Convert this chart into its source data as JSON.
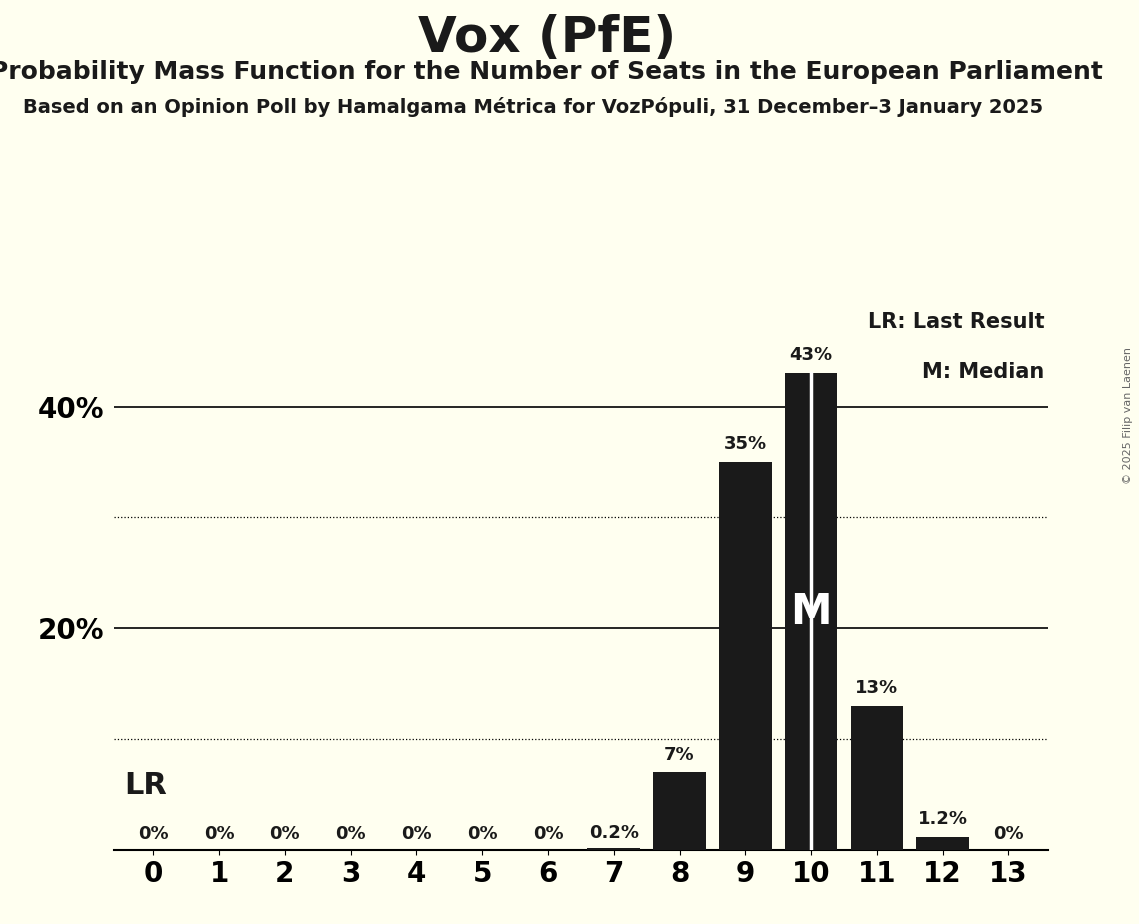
{
  "title": "Vox (PfE)",
  "subtitle": "Probability Mass Function for the Number of Seats in the European Parliament",
  "source_line": "Based on an Opinion Poll by Hamalgama Métrica for VozPópuli, 31 December–3 January 2025",
  "copyright": "© 2025 Filip van Laenen",
  "categories": [
    0,
    1,
    2,
    3,
    4,
    5,
    6,
    7,
    8,
    9,
    10,
    11,
    12,
    13
  ],
  "values": [
    0.0,
    0.0,
    0.0,
    0.0,
    0.0,
    0.0,
    0.0,
    0.2,
    7.0,
    35.0,
    43.0,
    13.0,
    1.2,
    0.0
  ],
  "bar_color": "#1a1a1a",
  "background_color": "#fffff0",
  "label_color": "#1a1a1a",
  "bar_labels": [
    "0%",
    "0%",
    "0%",
    "0%",
    "0%",
    "0%",
    "0%",
    "0.2%",
    "7%",
    "35%",
    "43%",
    "13%",
    "1.2%",
    "0%"
  ],
  "median_seat": 10,
  "lr_label": "LR",
  "median_label": "M",
  "legend_lr": "LR: Last Result",
  "legend_m": "M: Median",
  "ylim": [
    0,
    50
  ],
  "solid_grid": [
    0,
    20,
    40
  ],
  "dotted_grid": [
    10,
    30
  ],
  "title_fontsize": 36,
  "subtitle_fontsize": 18,
  "source_fontsize": 14
}
